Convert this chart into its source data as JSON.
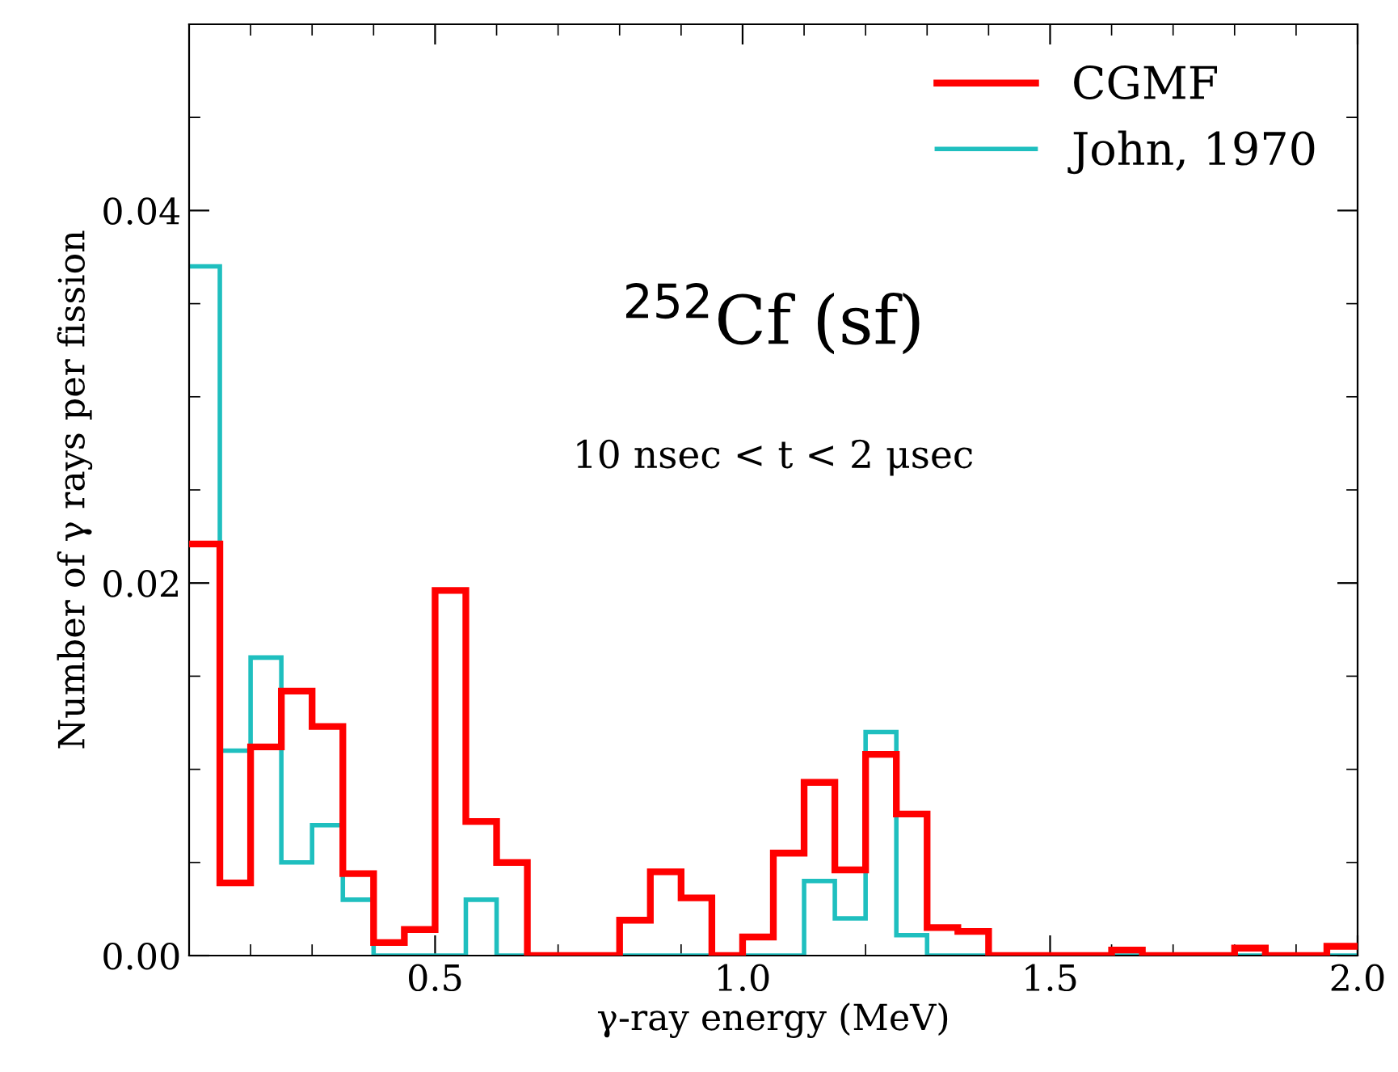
{
  "chart_data": {
    "type": "histogram",
    "xlabel": "γ-ray energy (MeV)",
    "ylabel": "Number of γ rays per fission",
    "annotations": [
      "$^{252}$Cf (sf)",
      "10 nsec < t < 2 μsec"
    ],
    "bins": [
      0.1,
      0.15,
      0.2,
      0.25,
      0.3,
      0.35,
      0.4,
      0.45,
      0.5,
      0.55,
      0.6,
      0.65,
      0.7,
      0.75,
      0.8,
      0.85,
      0.9,
      0.95,
      1.0,
      1.05,
      1.1,
      1.15,
      1.2,
      1.25,
      1.3,
      1.35,
      1.4,
      1.45,
      1.5,
      1.55,
      1.6,
      1.65,
      1.7,
      1.75,
      1.8,
      1.85,
      1.9,
      1.95,
      2.0
    ],
    "series": [
      {
        "name": "CGMF",
        "color": "#ff0000",
        "values": [
          0.0221,
          0.0039,
          0.0112,
          0.0142,
          0.0123,
          0.0044,
          0.0007,
          0.0014,
          0.0196,
          0.0072,
          0.005,
          0,
          0,
          0,
          0.0019,
          0.0045,
          0.0031,
          0,
          0.001,
          0.0055,
          0.0093,
          0.0046,
          0.0108,
          0.0076,
          0.0015,
          0.0013,
          0,
          0,
          0,
          0,
          0.0003,
          0,
          0,
          0,
          0.0004,
          0,
          0,
          0.0005
        ]
      },
      {
        "name": "John, 1970",
        "color": "#1fbfbf",
        "values": [
          0.037,
          0.011,
          0.016,
          0.005,
          0.007,
          0.003,
          0,
          0,
          0,
          0.003,
          0,
          0,
          0,
          0,
          0,
          0,
          0,
          0,
          0,
          0,
          0.004,
          0.002,
          0.012,
          0.0011,
          0,
          0,
          0,
          0,
          0,
          0,
          0,
          0,
          0,
          0,
          0,
          0,
          0,
          0
        ]
      }
    ],
    "xlim": [
      0.1,
      2.0
    ],
    "xticks": [
      {
        "value": 0.5,
        "label": "0.5"
      },
      {
        "value": 1.0,
        "label": "1.0"
      },
      {
        "value": 1.5,
        "label": "1.5"
      },
      {
        "value": 2.0,
        "label": "2.0"
      }
    ],
    "ylim": [
      0,
      0.05
    ],
    "yticks": [
      {
        "value": 0,
        "label": "0.00"
      },
      {
        "value": 0.02,
        "label": "0.02"
      },
      {
        "value": 0.04,
        "label": "0.04"
      }
    ],
    "grid": false,
    "legend": "top right"
  }
}
